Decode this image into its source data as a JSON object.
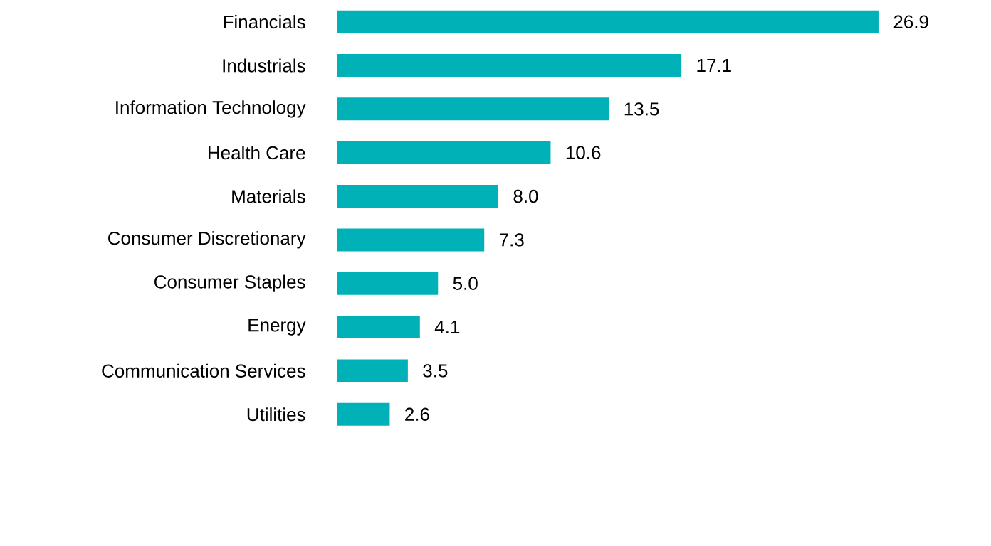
{
  "chart_data": {
    "type": "bar",
    "orientation": "horizontal",
    "categories": [
      "Financials",
      "Industrials",
      "Information Technology",
      "Health Care",
      "Materials",
      "Consumer Discretionary",
      "Consumer Staples",
      "Energy",
      "Communication Services",
      "Utilities"
    ],
    "values": [
      26.9,
      17.1,
      13.5,
      10.6,
      8.0,
      7.3,
      5.0,
      4.1,
      3.5,
      2.6
    ],
    "value_labels": [
      "26.9",
      "17.1",
      "13.5",
      "10.6",
      "8.0",
      "7.3",
      "5.0",
      "4.1",
      "3.5",
      "2.6"
    ],
    "color": "#00b2b8"
  }
}
